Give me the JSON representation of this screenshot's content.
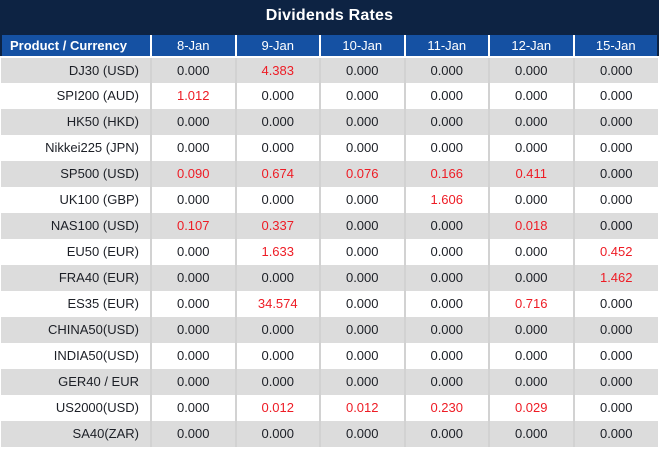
{
  "chart_data": {
    "type": "table",
    "title": "Dividends Rates",
    "corner_header": "Product / Currency",
    "columns": [
      "8-Jan",
      "9-Jan",
      "10-Jan",
      "11-Jan",
      "12-Jan",
      "15-Jan"
    ],
    "rows": [
      {
        "product": "DJ30 (USD)",
        "values": [
          "0.000",
          "4.383",
          "0.000",
          "0.000",
          "0.000",
          "0.000"
        ]
      },
      {
        "product": "SPI200 (AUD)",
        "values": [
          "1.012",
          "0.000",
          "0.000",
          "0.000",
          "0.000",
          "0.000"
        ]
      },
      {
        "product": "HK50 (HKD)",
        "values": [
          "0.000",
          "0.000",
          "0.000",
          "0.000",
          "0.000",
          "0.000"
        ]
      },
      {
        "product": "Nikkei225 (JPN)",
        "values": [
          "0.000",
          "0.000",
          "0.000",
          "0.000",
          "0.000",
          "0.000"
        ]
      },
      {
        "product": "SP500 (USD)",
        "values": [
          "0.090",
          "0.674",
          "0.076",
          "0.166",
          "0.411",
          "0.000"
        ]
      },
      {
        "product": "UK100 (GBP)",
        "values": [
          "0.000",
          "0.000",
          "0.000",
          "1.606",
          "0.000",
          "0.000"
        ]
      },
      {
        "product": "NAS100 (USD)",
        "values": [
          "0.107",
          "0.337",
          "0.000",
          "0.000",
          "0.018",
          "0.000"
        ]
      },
      {
        "product": "EU50 (EUR)",
        "values": [
          "0.000",
          "1.633",
          "0.000",
          "0.000",
          "0.000",
          "0.452"
        ]
      },
      {
        "product": "FRA40 (EUR)",
        "values": [
          "0.000",
          "0.000",
          "0.000",
          "0.000",
          "0.000",
          "1.462"
        ]
      },
      {
        "product": "ES35 (EUR)",
        "values": [
          "0.000",
          "34.574",
          "0.000",
          "0.000",
          "0.716",
          "0.000"
        ]
      },
      {
        "product": "CHINA50(USD)",
        "values": [
          "0.000",
          "0.000",
          "0.000",
          "0.000",
          "0.000",
          "0.000"
        ]
      },
      {
        "product": "INDIA50(USD)",
        "values": [
          "0.000",
          "0.000",
          "0.000",
          "0.000",
          "0.000",
          "0.000"
        ]
      },
      {
        "product": "GER40 / EUR",
        "values": [
          "0.000",
          "0.000",
          "0.000",
          "0.000",
          "0.000",
          "0.000"
        ]
      },
      {
        "product": "US2000(USD)",
        "values": [
          "0.000",
          "0.012",
          "0.012",
          "0.230",
          "0.029",
          "0.000"
        ]
      },
      {
        "product": "SA40(ZAR)",
        "values": [
          "0.000",
          "0.000",
          "0.000",
          "0.000",
          "0.000",
          "0.000"
        ]
      }
    ],
    "layout_hints": {
      "nonzero_value_color": "red",
      "zero_value_color": "dark",
      "alternating_row_shading": true
    }
  },
  "colors": {
    "title_navy": "#0d2343",
    "header_blue": "#1551a3",
    "value_red": "#ee1c25",
    "text_dark": "#1c1f26",
    "row_alt_gray": "#dcdcdc",
    "cell_divider": "#d2d2d2"
  }
}
